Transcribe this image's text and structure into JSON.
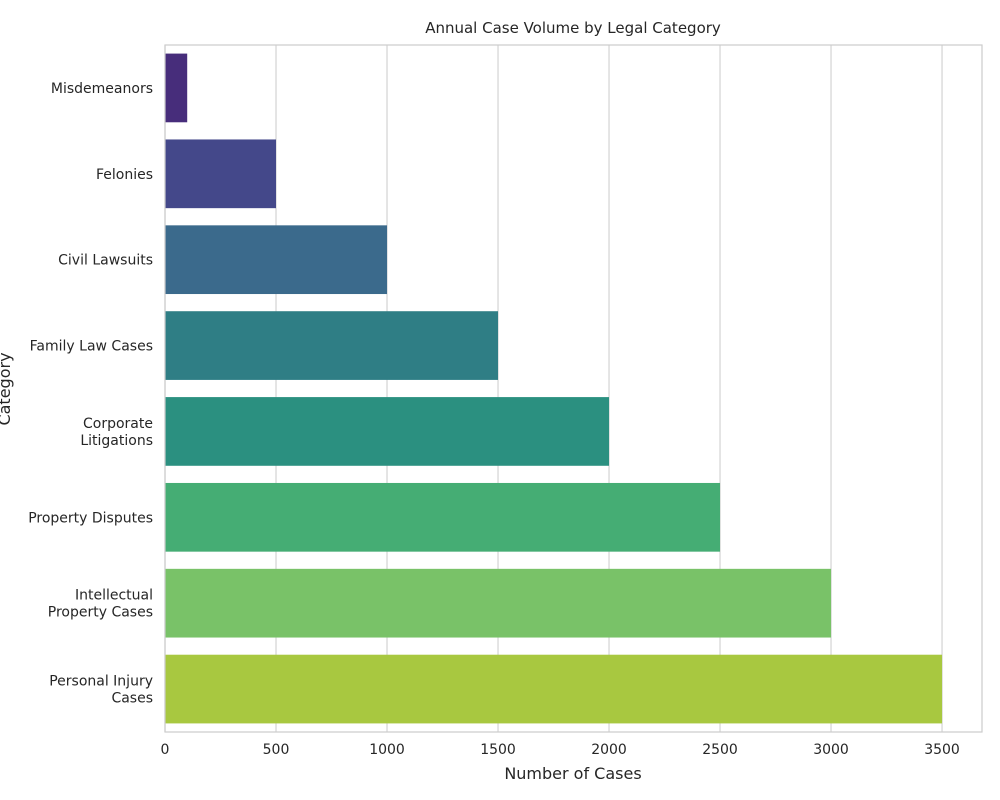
{
  "chart_data": {
    "type": "bar",
    "orientation": "horizontal",
    "title": "Annual Case Volume by Legal Category",
    "xlabel": "Number of Cases",
    "ylabel": "Category",
    "categories": [
      [
        "Misdemeanors"
      ],
      [
        "Felonies"
      ],
      [
        "Civil Lawsuits"
      ],
      [
        "Family Law Cases"
      ],
      [
        "Corporate",
        "Litigations"
      ],
      [
        "Property Disputes"
      ],
      [
        "Intellectual",
        "Property Cases"
      ],
      [
        "Personal Injury",
        "Cases"
      ]
    ],
    "values": [
      100,
      500,
      1000,
      1500,
      2000,
      2500,
      3000,
      3500
    ],
    "colors": [
      "#472d7b",
      "#44488a",
      "#3b6a8c",
      "#2f7e85",
      "#2b9080",
      "#45ad74",
      "#79c268",
      "#a8c840"
    ],
    "xlim": [
      0,
      3680
    ],
    "xticks": [
      0,
      500,
      1000,
      1500,
      2000,
      2500,
      3000,
      3500
    ],
    "grid": true
  }
}
